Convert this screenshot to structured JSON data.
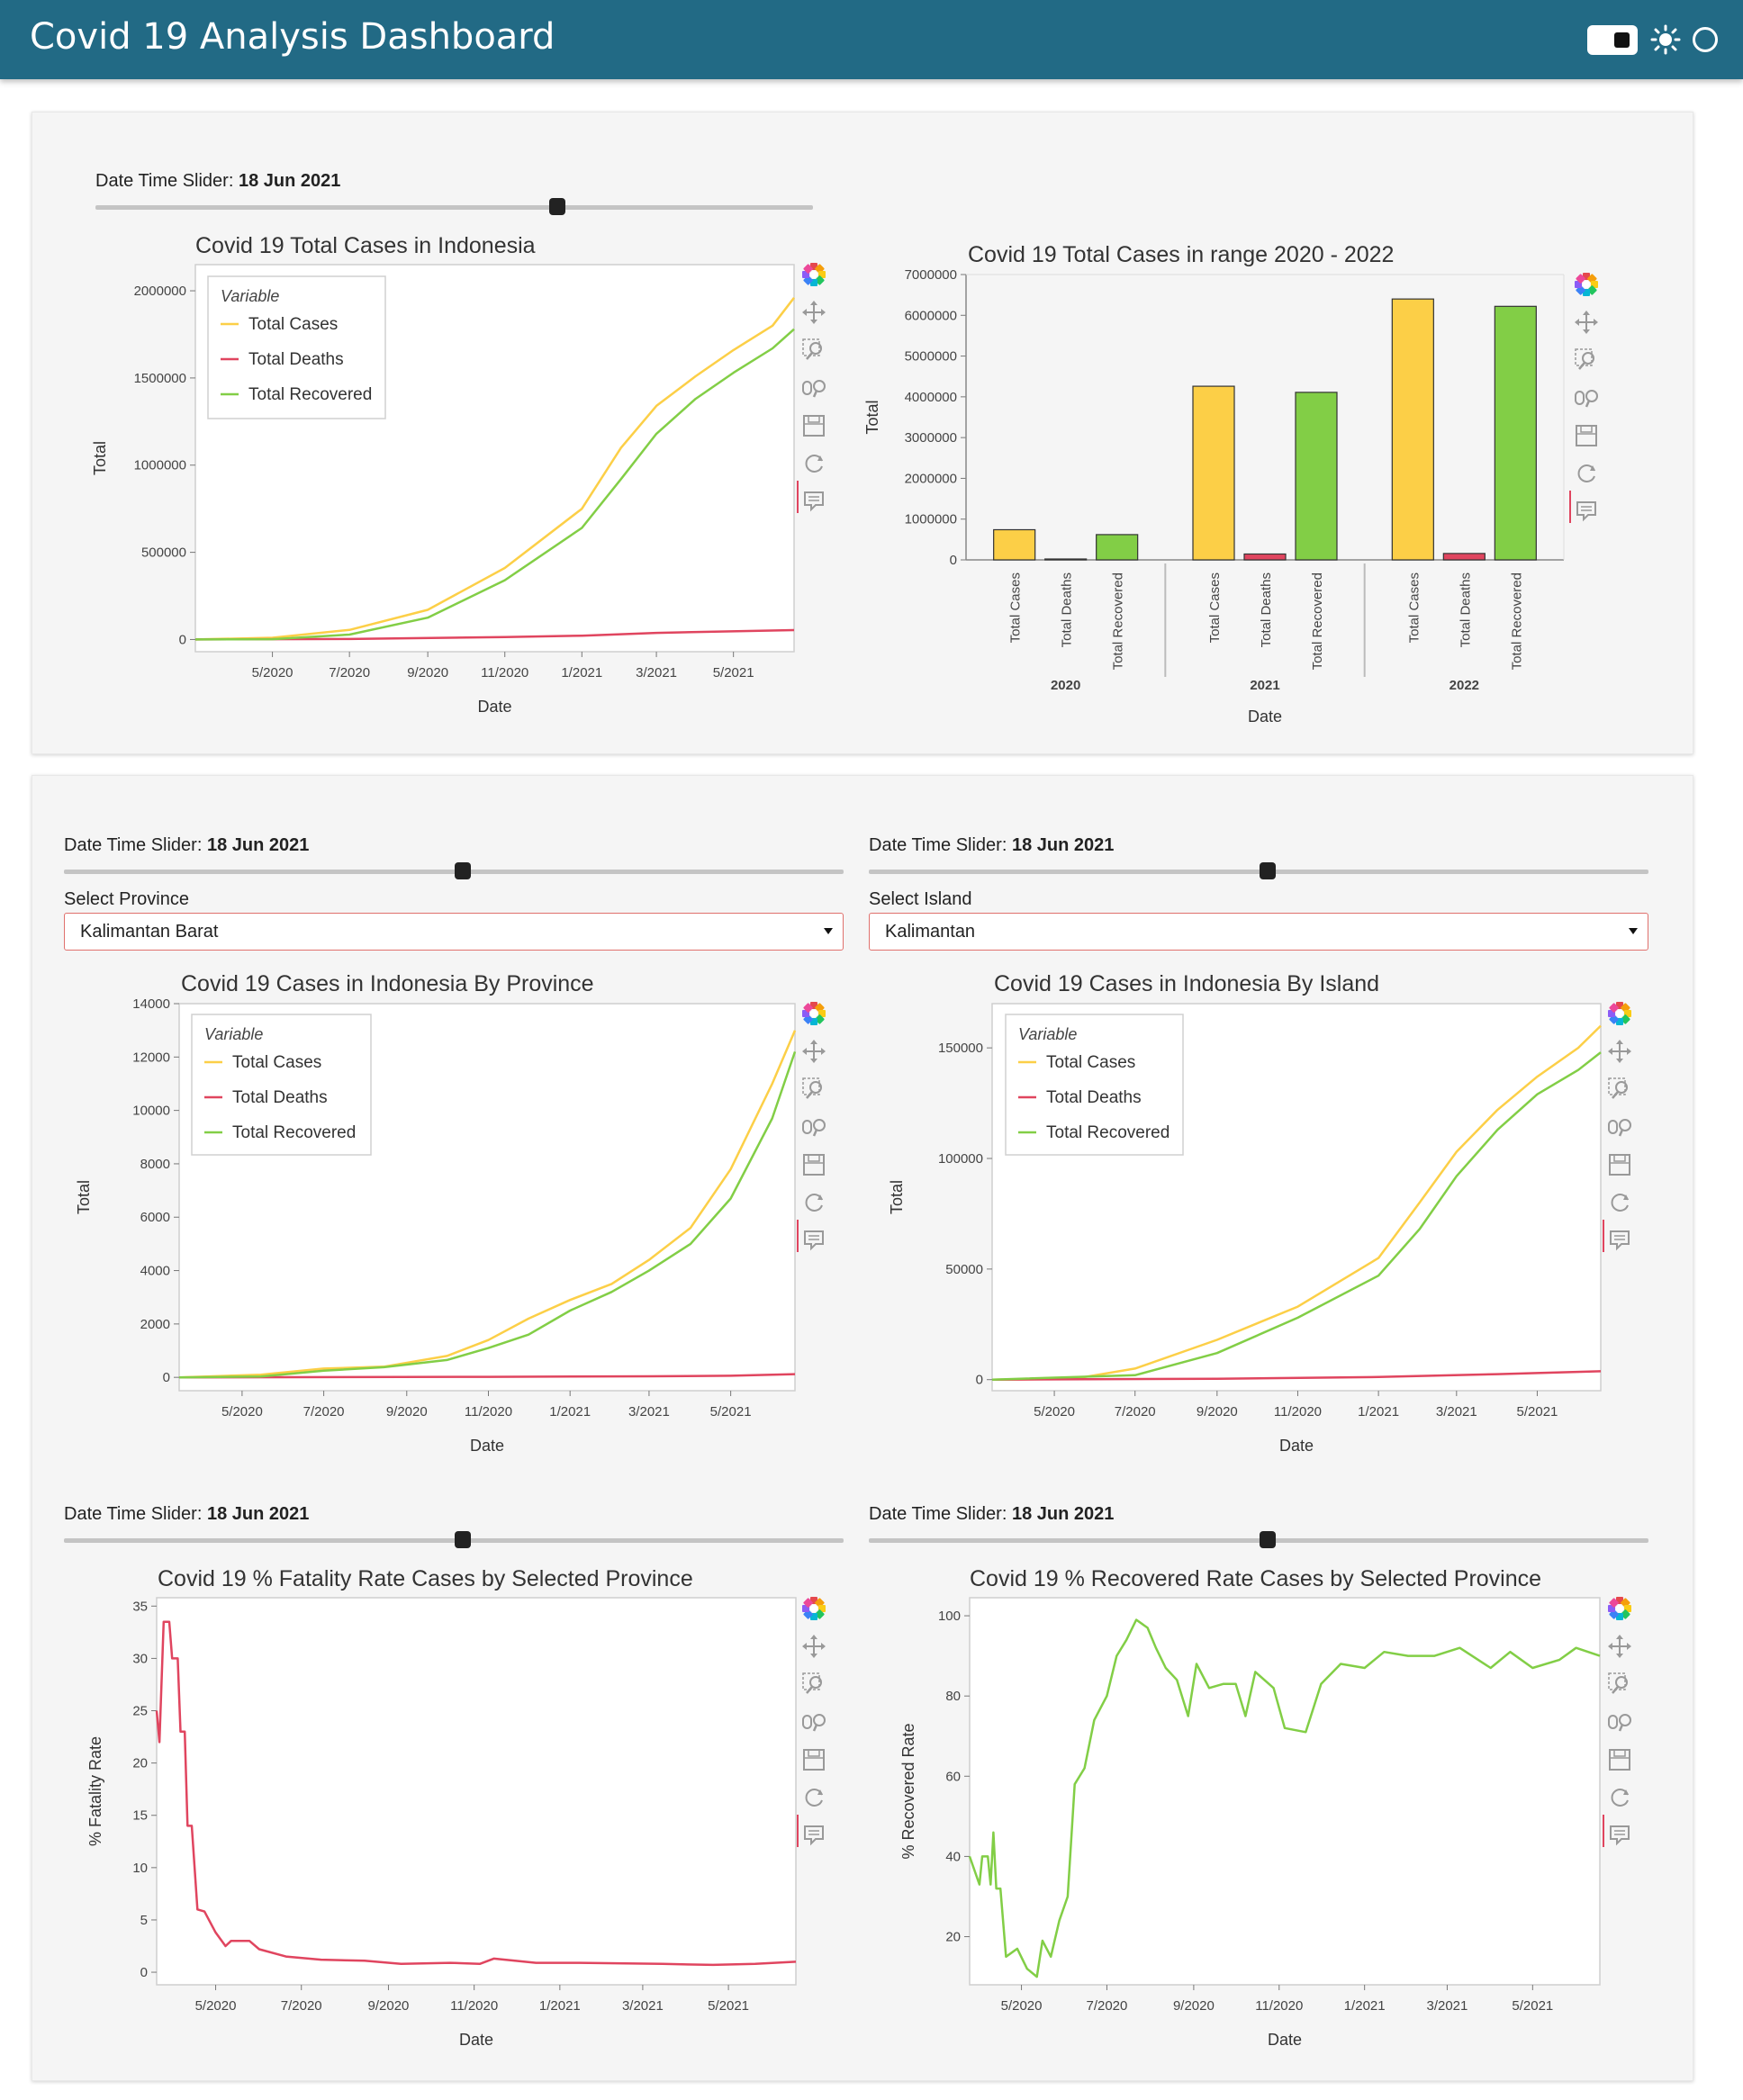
{
  "app": {
    "title": "Covid 19 Analysis Dashboard"
  },
  "slider": {
    "label": "Date Time Slider: ",
    "value": "18 Jun 2021"
  },
  "province_select": {
    "label": "Select Province",
    "value": "Kalimantan Barat"
  },
  "island_select": {
    "label": "Select Island",
    "value": "Kalimantan"
  },
  "legend": {
    "title": "Variable",
    "items": [
      "Total Cases",
      "Total Deaths",
      "Total Recovered"
    ]
  },
  "colors": {
    "cases": "#fccf47",
    "deaths": "#e0455f",
    "recovered": "#82ce46",
    "header": "#226a85"
  },
  "toolbar_icons": [
    "bokeh-logo-icon",
    "pan-icon",
    "box-zoom-icon",
    "wheel-zoom-icon",
    "save-icon",
    "reset-icon",
    "hover-icon"
  ],
  "chart_data": [
    {
      "id": "total",
      "type": "line",
      "title": "Covid 19 Total Cases in Indonesia",
      "xlabel": "Date",
      "ylabel": "Total",
      "x_ticks": [
        "5/2020",
        "7/2020",
        "9/2020",
        "11/2020",
        "1/2021",
        "3/2021",
        "5/2021"
      ],
      "y_ticks": [
        "0",
        "500000",
        "1000000",
        "1500000",
        "2000000"
      ],
      "ylim": [
        -70000,
        2150000
      ],
      "x_range": [
        "2020-03-01",
        "2021-06-18"
      ],
      "series": [
        {
          "name": "Total Cases",
          "points": [
            [
              "2020-03-01",
              0
            ],
            [
              "2020-05-01",
              10000
            ],
            [
              "2020-07-01",
              55000
            ],
            [
              "2020-09-01",
              170000
            ],
            [
              "2020-11-01",
              410000
            ],
            [
              "2021-01-01",
              750000
            ],
            [
              "2021-02-01",
              1100000
            ],
            [
              "2021-03-01",
              1340000
            ],
            [
              "2021-04-01",
              1510000
            ],
            [
              "2021-05-01",
              1660000
            ],
            [
              "2021-06-01",
              1800000
            ],
            [
              "2021-06-18",
              1960000
            ]
          ]
        },
        {
          "name": "Total Deaths",
          "points": [
            [
              "2020-03-01",
              0
            ],
            [
              "2020-07-01",
              3000
            ],
            [
              "2020-11-01",
              14000
            ],
            [
              "2021-01-01",
              22000
            ],
            [
              "2021-03-01",
              38000
            ],
            [
              "2021-06-18",
              54000
            ]
          ]
        },
        {
          "name": "Total Recovered",
          "points": [
            [
              "2020-03-01",
              0
            ],
            [
              "2020-05-01",
              2000
            ],
            [
              "2020-07-01",
              28000
            ],
            [
              "2020-09-01",
              125000
            ],
            [
              "2020-11-01",
              340000
            ],
            [
              "2021-01-01",
              640000
            ],
            [
              "2021-02-01",
              920000
            ],
            [
              "2021-03-01",
              1180000
            ],
            [
              "2021-04-01",
              1380000
            ],
            [
              "2021-05-01",
              1530000
            ],
            [
              "2021-06-01",
              1670000
            ],
            [
              "2021-06-18",
              1780000
            ]
          ]
        }
      ]
    },
    {
      "id": "bar",
      "type": "bar",
      "title": "Covid 19 Total Cases in range 2020 - 2022",
      "xlabel": "Date",
      "ylabel": "Total",
      "categories": [
        "2020",
        "2021",
        "2022"
      ],
      "subcategories": [
        "Total Cases",
        "Total Deaths",
        "Total Recovered"
      ],
      "y_ticks": [
        "0",
        "1000000",
        "2000000",
        "3000000",
        "4000000",
        "5000000",
        "6000000",
        "7000000"
      ],
      "ylim": [
        0,
        7000000
      ],
      "values": [
        [
          740000,
          22000,
          620000
        ],
        [
          4260000,
          144000,
          4110000
        ],
        [
          6400000,
          157000,
          6220000
        ]
      ]
    },
    {
      "id": "province",
      "type": "line",
      "title": "Covid 19 Cases in Indonesia By Province",
      "xlabel": "Date",
      "ylabel": "Total",
      "x_ticks": [
        "5/2020",
        "7/2020",
        "9/2020",
        "11/2020",
        "1/2021",
        "3/2021",
        "5/2021"
      ],
      "y_ticks": [
        "0",
        "2000",
        "4000",
        "6000",
        "8000",
        "10000",
        "12000",
        "14000"
      ],
      "ylim": [
        -500,
        14000
      ],
      "x_range": [
        "2020-03-15",
        "2021-06-18"
      ],
      "series": [
        {
          "name": "Total Cases",
          "points": [
            [
              "2020-03-15",
              0
            ],
            [
              "2020-05-15",
              100
            ],
            [
              "2020-07-01",
              330
            ],
            [
              "2020-08-15",
              400
            ],
            [
              "2020-10-01",
              800
            ],
            [
              "2020-11-01",
              1400
            ],
            [
              "2020-12-01",
              2200
            ],
            [
              "2021-01-01",
              2900
            ],
            [
              "2021-02-01",
              3500
            ],
            [
              "2021-03-01",
              4400
            ],
            [
              "2021-04-01",
              5600
            ],
            [
              "2021-05-01",
              7800
            ],
            [
              "2021-06-01",
              11000
            ],
            [
              "2021-06-18",
              13000
            ]
          ]
        },
        {
          "name": "Total Deaths",
          "points": [
            [
              "2020-03-15",
              0
            ],
            [
              "2020-11-01",
              20
            ],
            [
              "2021-03-01",
              40
            ],
            [
              "2021-05-01",
              60
            ],
            [
              "2021-06-18",
              120
            ]
          ]
        },
        {
          "name": "Total Recovered",
          "points": [
            [
              "2020-03-15",
              0
            ],
            [
              "2020-05-15",
              30
            ],
            [
              "2020-07-01",
              250
            ],
            [
              "2020-08-15",
              380
            ],
            [
              "2020-10-01",
              650
            ],
            [
              "2020-11-01",
              1100
            ],
            [
              "2020-12-01",
              1600
            ],
            [
              "2021-01-01",
              2500
            ],
            [
              "2021-02-01",
              3200
            ],
            [
              "2021-03-01",
              4000
            ],
            [
              "2021-04-01",
              5000
            ],
            [
              "2021-05-01",
              6700
            ],
            [
              "2021-06-01",
              9700
            ],
            [
              "2021-06-18",
              12200
            ]
          ]
        }
      ]
    },
    {
      "id": "island",
      "type": "line",
      "title": "Covid 19 Cases in Indonesia By Island",
      "xlabel": "Date",
      "ylabel": "Total",
      "x_ticks": [
        "5/2020",
        "7/2020",
        "9/2020",
        "11/2020",
        "1/2021",
        "3/2021",
        "5/2021"
      ],
      "y_ticks": [
        "0",
        "50000",
        "100000",
        "150000"
      ],
      "ylim": [
        -5000,
        170000
      ],
      "x_range": [
        "2020-03-15",
        "2021-06-18"
      ],
      "series": [
        {
          "name": "Total Cases",
          "points": [
            [
              "2020-03-15",
              0
            ],
            [
              "2020-05-15",
              300
            ],
            [
              "2020-07-01",
              5000
            ],
            [
              "2020-09-01",
              18000
            ],
            [
              "2020-11-01",
              33000
            ],
            [
              "2021-01-01",
              55000
            ],
            [
              "2021-02-01",
              80000
            ],
            [
              "2021-03-01",
              103000
            ],
            [
              "2021-04-01",
              122000
            ],
            [
              "2021-05-01",
              137000
            ],
            [
              "2021-06-01",
              150000
            ],
            [
              "2021-06-18",
              160000
            ]
          ]
        },
        {
          "name": "Total Deaths",
          "points": [
            [
              "2020-03-15",
              0
            ],
            [
              "2020-09-01",
              400
            ],
            [
              "2021-01-01",
              1200
            ],
            [
              "2021-04-01",
              2500
            ],
            [
              "2021-06-18",
              3800
            ]
          ]
        },
        {
          "name": "Total Recovered",
          "points": [
            [
              "2020-03-15",
              0
            ],
            [
              "2020-07-01",
              2000
            ],
            [
              "2020-09-01",
              12000
            ],
            [
              "2020-11-01",
              28000
            ],
            [
              "2021-01-01",
              47000
            ],
            [
              "2021-02-01",
              68000
            ],
            [
              "2021-03-01",
              92000
            ],
            [
              "2021-04-01",
              113000
            ],
            [
              "2021-05-01",
              129000
            ],
            [
              "2021-06-01",
              140000
            ],
            [
              "2021-06-18",
              148000
            ]
          ]
        }
      ]
    },
    {
      "id": "fatality",
      "type": "line",
      "title": "Covid 19 % Fatality Rate Cases by Selected Province",
      "xlabel": "Date",
      "ylabel": "% Fatality Rate",
      "x_ticks": [
        "5/2020",
        "7/2020",
        "9/2020",
        "11/2020",
        "1/2021",
        "3/2021",
        "5/2021"
      ],
      "y_ticks": [
        "0",
        "5",
        "10",
        "15",
        "20",
        "25",
        "30",
        "35"
      ],
      "ylim": [
        -1.2,
        35.8
      ],
      "x_range": [
        "2020-03-20",
        "2021-06-18"
      ],
      "series": [
        {
          "name": "% Fatality Rate",
          "points": [
            [
              "2020-03-20",
              25
            ],
            [
              "2020-03-22",
              22
            ],
            [
              "2020-03-25",
              33.5
            ],
            [
              "2020-03-29",
              33.5
            ],
            [
              "2020-03-31",
              30
            ],
            [
              "2020-04-04",
              30
            ],
            [
              "2020-04-06",
              23
            ],
            [
              "2020-04-09",
              23
            ],
            [
              "2020-04-11",
              14
            ],
            [
              "2020-04-14",
              14
            ],
            [
              "2020-04-18",
              6
            ],
            [
              "2020-04-23",
              5.8
            ],
            [
              "2020-05-01",
              3.8
            ],
            [
              "2020-05-08",
              2.5
            ],
            [
              "2020-05-12",
              3
            ],
            [
              "2020-05-25",
              3
            ],
            [
              "2020-06-01",
              2.2
            ],
            [
              "2020-06-20",
              1.5
            ],
            [
              "2020-07-15",
              1.2
            ],
            [
              "2020-08-15",
              1.1
            ],
            [
              "2020-09-10",
              0.8
            ],
            [
              "2020-10-15",
              0.9
            ],
            [
              "2020-11-05",
              0.8
            ],
            [
              "2020-11-15",
              1.3
            ],
            [
              "2020-12-15",
              0.9
            ],
            [
              "2021-01-15",
              0.9
            ],
            [
              "2021-03-15",
              0.8
            ],
            [
              "2021-04-20",
              0.7
            ],
            [
              "2021-05-20",
              0.8
            ],
            [
              "2021-06-18",
              1.0
            ]
          ]
        }
      ]
    },
    {
      "id": "recovered",
      "type": "line",
      "title": "Covid 19 % Recovered Rate Cases by Selected Province",
      "xlabel": "Date",
      "ylabel": "% Recovered Rate",
      "x_ticks": [
        "5/2020",
        "7/2020",
        "9/2020",
        "11/2020",
        "1/2021",
        "3/2021",
        "5/2021"
      ],
      "y_ticks": [
        "20",
        "40",
        "60",
        "80",
        "100"
      ],
      "ylim": [
        8,
        104.5
      ],
      "x_range": [
        "2020-03-25",
        "2021-06-18"
      ],
      "series": [
        {
          "name": "% Recovered Rate",
          "points": [
            [
              "2020-03-25",
              40
            ],
            [
              "2020-04-01",
              33
            ],
            [
              "2020-04-03",
              40
            ],
            [
              "2020-04-07",
              40
            ],
            [
              "2020-04-09",
              33
            ],
            [
              "2020-04-11",
              46
            ],
            [
              "2020-04-13",
              32
            ],
            [
              "2020-04-16",
              32
            ],
            [
              "2020-04-20",
              15
            ],
            [
              "2020-04-28",
              17
            ],
            [
              "2020-05-05",
              12
            ],
            [
              "2020-05-12",
              10
            ],
            [
              "2020-05-16",
              19
            ],
            [
              "2020-05-22",
              15
            ],
            [
              "2020-05-28",
              24
            ],
            [
              "2020-06-03",
              30
            ],
            [
              "2020-06-08",
              58
            ],
            [
              "2020-06-15",
              62
            ],
            [
              "2020-06-22",
              74
            ],
            [
              "2020-07-01",
              80
            ],
            [
              "2020-07-08",
              90
            ],
            [
              "2020-07-15",
              94
            ],
            [
              "2020-07-22",
              99
            ],
            [
              "2020-07-30",
              97
            ],
            [
              "2020-08-05",
              92
            ],
            [
              "2020-08-12",
              87
            ],
            [
              "2020-08-20",
              84
            ],
            [
              "2020-08-28",
              75
            ],
            [
              "2020-09-03",
              88
            ],
            [
              "2020-09-12",
              82
            ],
            [
              "2020-09-22",
              83
            ],
            [
              "2020-10-01",
              83
            ],
            [
              "2020-10-08",
              75
            ],
            [
              "2020-10-15",
              86
            ],
            [
              "2020-10-28",
              82
            ],
            [
              "2020-11-05",
              72
            ],
            [
              "2020-11-20",
              71
            ],
            [
              "2020-12-01",
              83
            ],
            [
              "2020-12-15",
              88
            ],
            [
              "2021-01-01",
              87
            ],
            [
              "2021-01-15",
              91
            ],
            [
              "2021-02-01",
              90
            ],
            [
              "2021-02-20",
              90
            ],
            [
              "2021-03-10",
              92
            ],
            [
              "2021-04-01",
              87
            ],
            [
              "2021-04-15",
              91
            ],
            [
              "2021-05-01",
              87
            ],
            [
              "2021-05-20",
              89
            ],
            [
              "2021-06-01",
              92
            ],
            [
              "2021-06-18",
              90
            ]
          ]
        }
      ]
    }
  ]
}
